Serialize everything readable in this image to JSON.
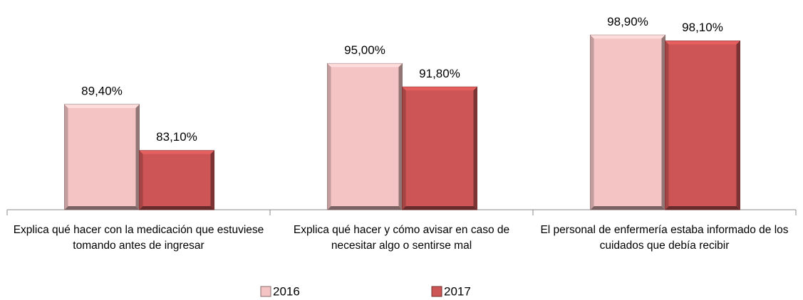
{
  "chart_data": {
    "type": "bar",
    "categories": [
      "Explica qué hacer con la medicación que estuviese tomando antes de ingresar",
      "Explica qué hacer y cómo avisar en caso de necesitar algo o sentirse mal",
      "El personal de enfermería estaba informado de los cuidados que debía recibir"
    ],
    "series": [
      {
        "name": "2016",
        "color": "#f4c4c4",
        "values": [
          89.4,
          95.0,
          98.9
        ],
        "value_labels": [
          "89,40%",
          "95,00%",
          "98,90%"
        ]
      },
      {
        "name": "2017",
        "color": "#cd5555",
        "values": [
          83.1,
          91.8,
          98.1
        ],
        "value_labels": [
          "83,10%",
          "91,80%",
          "98,10%"
        ]
      }
    ],
    "ylim": [
      75,
      100
    ]
  }
}
